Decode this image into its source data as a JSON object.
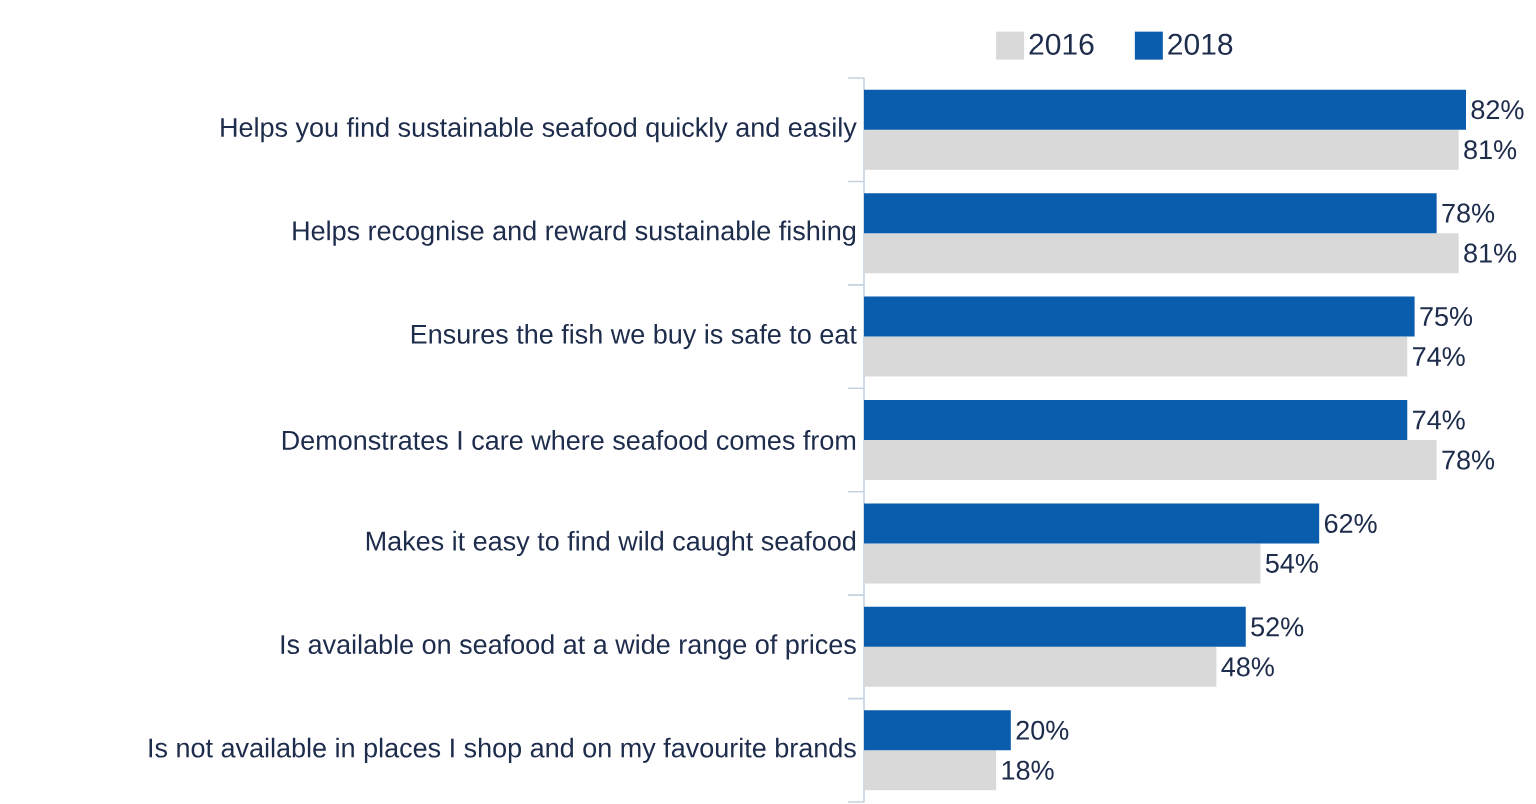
{
  "chart_data": {
    "type": "bar",
    "orientation": "horizontal",
    "categories": [
      "Helps you find sustainable seafood quickly and easily",
      "Helps recognise and reward sustainable fishing",
      "Ensures the fish we buy is safe to eat",
      "Demonstrates I care where seafood comes from",
      "Makes it easy to find wild caught seafood",
      "Is available on seafood at a wide range of prices",
      "Is not available in places I shop and on my favourite brands"
    ],
    "series": [
      {
        "name": "2016",
        "color": "#d9d9d9",
        "values": [
          81,
          81,
          74,
          78,
          54,
          48,
          18
        ],
        "value_labels": [
          "81%",
          "81%",
          "74%",
          "78%",
          "54%",
          "48%",
          "18%"
        ]
      },
      {
        "name": "2018",
        "color": "#0a5cac",
        "values": [
          82,
          78,
          75,
          74,
          62,
          52,
          20
        ],
        "value_labels": [
          "82%",
          "78%",
          "75%",
          "74%",
          "62%",
          "52%",
          "20%"
        ]
      }
    ],
    "legend": "top"
  }
}
